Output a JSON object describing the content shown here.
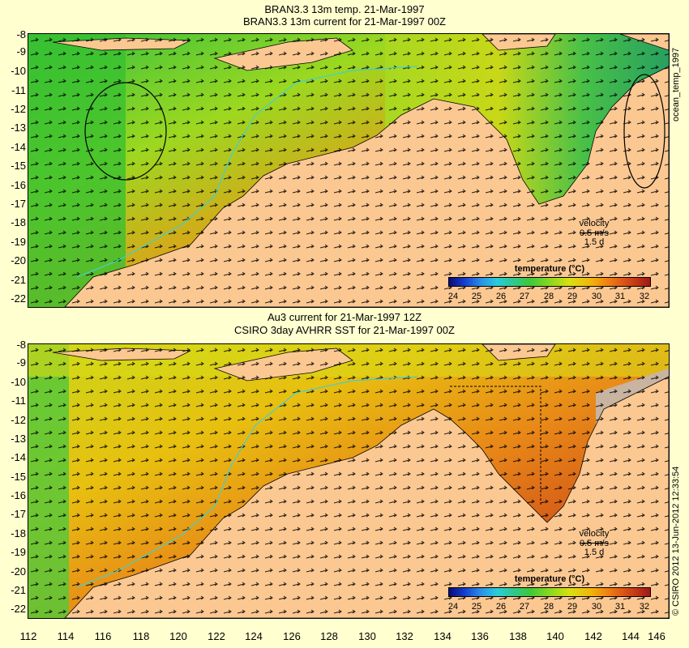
{
  "panel1": {
    "title1": "BRAN3.3 13m temp. 21-Mar-1997",
    "title2": "BRAN3.3 13m current for 21-Mar-1997 00Z",
    "velocity_label": "velocity",
    "velocity_scale": "0.5 m/s",
    "velocity_time": "1.5 d",
    "colorbar_title": "temperature (°C)",
    "side_label": "ocean_temp_1997"
  },
  "panel2": {
    "title1": "Au3 current for 21-Mar-1997 12Z",
    "title2": "CSIRO 3day AVHRR SST for 21-Mar-1997 00Z",
    "velocity_label": "velocity",
    "velocity_scale": "0.5 m/s",
    "velocity_time": "1.5 d",
    "colorbar_title": "temperature (°C)",
    "side_label": "© CSIRO 2012  13-Jun-2012 12:33:54"
  },
  "colorbar_ticks": [
    "24",
    "25",
    "26",
    "27",
    "28",
    "29",
    "30",
    "31",
    "32"
  ],
  "lat_ticks": [
    "-8",
    "-9",
    "-10",
    "-11",
    "-12",
    "-13",
    "-14",
    "-15",
    "-16",
    "-17",
    "-18",
    "-19",
    "-20",
    "-21",
    "-22"
  ],
  "lon_ticks": [
    "112",
    "114",
    "116",
    "118",
    "120",
    "122",
    "124",
    "126",
    "128",
    "130",
    "132",
    "134",
    "136",
    "138",
    "140",
    "142",
    "144",
    "146"
  ],
  "colors": {
    "land": "#fcc892",
    "background": "#ffffd0",
    "warm": "#e07818",
    "cool": "#3cc83c"
  }
}
